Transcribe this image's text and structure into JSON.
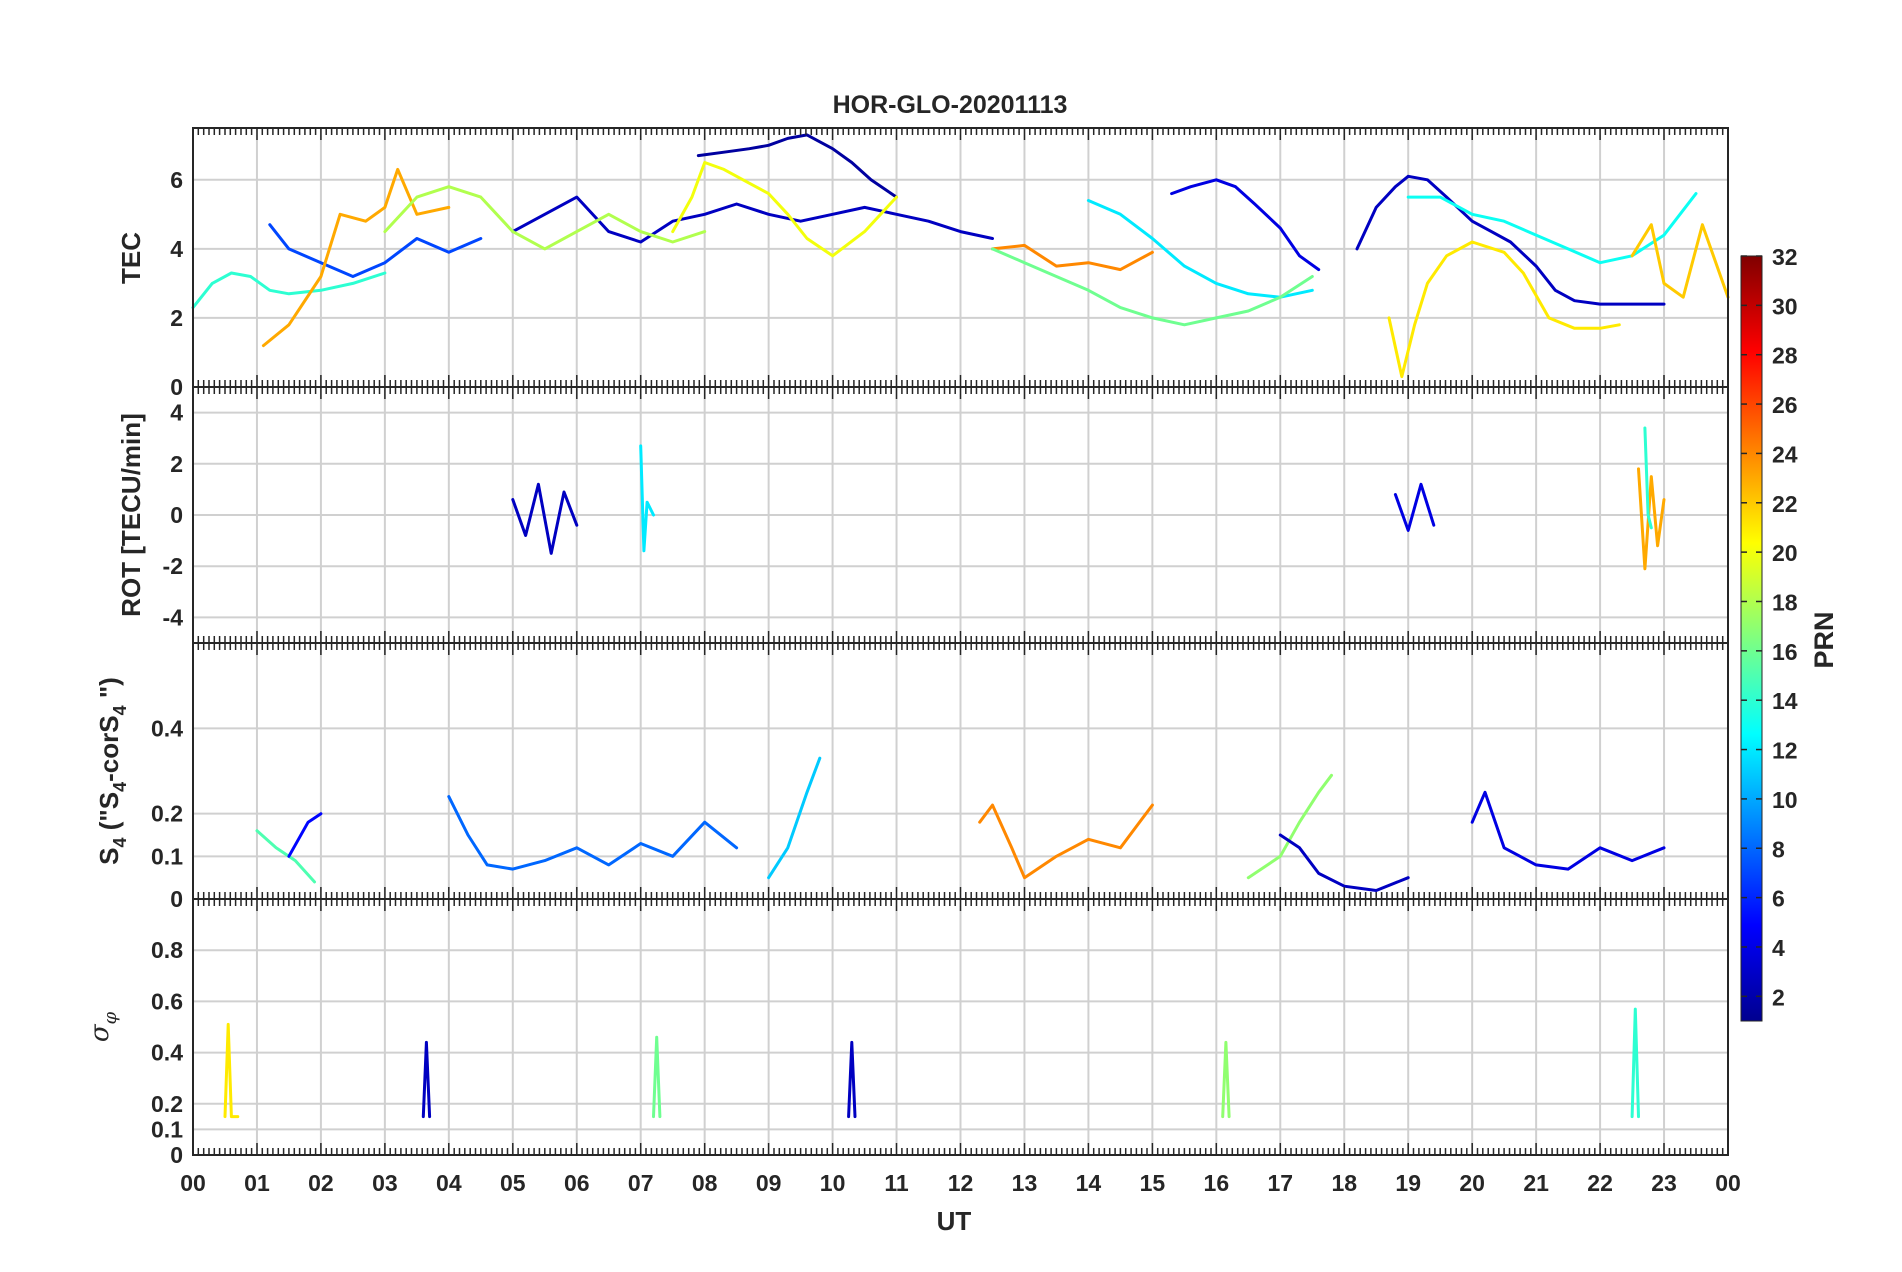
{
  "chart_data": {
    "type": "line",
    "title": "HOR-GLO-20201113",
    "xlabel": "UT",
    "x_tick_labels": [
      "00",
      "01",
      "02",
      "03",
      "04",
      "05",
      "06",
      "07",
      "08",
      "09",
      "10",
      "11",
      "12",
      "13",
      "14",
      "15",
      "16",
      "17",
      "18",
      "19",
      "20",
      "21",
      "22",
      "23",
      "00"
    ],
    "xlim": [
      0,
      24
    ],
    "colorbar": {
      "label": "PRN",
      "range": [
        1,
        32
      ],
      "tick_labels": [
        "2",
        "4",
        "6",
        "8",
        "10",
        "12",
        "14",
        "16",
        "18",
        "20",
        "22",
        "24",
        "26",
        "28",
        "30",
        "32"
      ],
      "colormap": "jet"
    },
    "panels": [
      {
        "ylabel": "TEC",
        "ylim": [
          0,
          7.5
        ],
        "y_tick_labels": [
          "0",
          "2",
          "4",
          "6"
        ],
        "series": [
          {
            "prn": 3,
            "x": [
              5.0,
              5.5,
              6.0,
              6.5,
              7.0,
              7.5,
              8.0,
              8.5,
              9.0,
              9.5,
              10.0,
              10.5,
              11.0,
              11.5,
              12.0,
              12.5
            ],
            "y": [
              4.5,
              5.0,
              5.5,
              4.5,
              4.2,
              4.8,
              5.0,
              5.3,
              5.0,
              4.8,
              5.0,
              5.2,
              5.0,
              4.8,
              4.5,
              4.3
            ]
          },
          {
            "prn": 2,
            "x": [
              7.9,
              8.3,
              8.7,
              9.0,
              9.3,
              9.6,
              10.0,
              10.3,
              10.6,
              11.0
            ],
            "y": [
              6.7,
              6.8,
              6.9,
              7.0,
              7.2,
              7.3,
              6.9,
              6.5,
              6.0,
              5.5
            ]
          },
          {
            "prn": 4,
            "x": [
              15.3,
              15.6,
              16.0,
              16.3,
              16.6,
              17.0,
              17.3,
              17.6
            ],
            "y": [
              5.6,
              5.8,
              6.0,
              5.8,
              5.3,
              4.6,
              3.8,
              3.4
            ]
          },
          {
            "prn": 3,
            "x": [
              18.2,
              18.5,
              18.8,
              19.0,
              19.3,
              19.6,
              20.0,
              20.3,
              20.6,
              21.0,
              21.3,
              21.6,
              22.0,
              22.3,
              22.6,
              23.0
            ],
            "y": [
              4.0,
              5.2,
              5.8,
              6.1,
              6.0,
              5.5,
              4.8,
              4.5,
              4.2,
              3.5,
              2.8,
              2.5,
              2.4,
              2.4,
              2.4,
              2.4
            ]
          },
          {
            "prn": 7,
            "x": [
              1.2,
              1.5,
              2.0,
              2.5,
              3.0,
              3.5,
              4.0,
              4.5
            ],
            "y": [
              4.7,
              4.0,
              3.6,
              3.2,
              3.6,
              4.3,
              3.9,
              4.3
            ]
          },
          {
            "prn": 12,
            "x": [
              14.0,
              14.5,
              15.0,
              15.5,
              16.0,
              16.5,
              17.0,
              17.5
            ],
            "y": [
              5.4,
              5.0,
              4.3,
              3.5,
              3.0,
              2.7,
              2.6,
              2.8
            ]
          },
          {
            "prn": 14,
            "x": [
              0.0,
              0.3,
              0.6,
              0.9,
              1.2,
              1.5,
              2.0,
              2.5,
              3.0
            ],
            "y": [
              2.3,
              3.0,
              3.3,
              3.2,
              2.8,
              2.7,
              2.8,
              3.0,
              3.3
            ]
          },
          {
            "prn": 13,
            "x": [
              19.0,
              19.5,
              20.0,
              20.5,
              21.0,
              21.5,
              22.0,
              22.5,
              23.0,
              23.5
            ],
            "y": [
              5.5,
              5.5,
              5.0,
              4.8,
              4.4,
              4.0,
              3.6,
              3.8,
              4.4,
              5.6
            ]
          },
          {
            "prn": 23,
            "x": [
              1.1,
              1.5,
              2.0,
              2.3,
              2.7,
              3.0,
              3.2,
              3.5,
              4.0
            ],
            "y": [
              1.2,
              1.8,
              3.2,
              5.0,
              4.8,
              5.2,
              6.3,
              5.0,
              5.2
            ]
          },
          {
            "prn": 18,
            "x": [
              3.0,
              3.5,
              4.0,
              4.5,
              5.0,
              5.5,
              6.0,
              6.5,
              7.0,
              7.5,
              8.0
            ],
            "y": [
              4.5,
              5.5,
              5.8,
              5.5,
              4.5,
              4.0,
              4.5,
              5.0,
              4.5,
              4.2,
              4.5
            ]
          },
          {
            "prn": 20,
            "x": [
              7.5,
              7.8,
              8.0,
              8.3,
              8.6,
              9.0,
              9.3,
              9.6,
              10.0,
              10.5,
              11.0
            ],
            "y": [
              4.5,
              5.5,
              6.5,
              6.3,
              6.0,
              5.6,
              5.0,
              4.3,
              3.8,
              4.5,
              5.5
            ]
          },
          {
            "prn": 21,
            "x": [
              18.7,
              18.9,
              19.1,
              19.3,
              19.6,
              20.0,
              20.5,
              20.8,
              21.2,
              21.6,
              22.0,
              22.3
            ],
            "y": [
              2.0,
              0.3,
              1.8,
              3.0,
              3.8,
              4.2,
              3.9,
              3.3,
              2.0,
              1.7,
              1.7,
              1.8
            ]
          },
          {
            "prn": 24,
            "x": [
              12.5,
              13.0,
              13.5,
              14.0,
              14.5,
              15.0
            ],
            "y": [
              4.0,
              4.1,
              3.5,
              3.6,
              3.4,
              3.9
            ]
          },
          {
            "prn": 22,
            "x": [
              22.5,
              22.8,
              23.0,
              23.3,
              23.6,
              24.0
            ],
            "y": [
              3.8,
              4.7,
              3.0,
              2.6,
              4.7,
              2.6
            ]
          },
          {
            "prn": 16,
            "x": [
              12.5,
              13.0,
              13.5,
              14.0,
              14.5,
              15.0,
              15.5,
              16.0,
              16.5,
              17.0,
              17.5
            ],
            "y": [
              4.0,
              3.6,
              3.2,
              2.8,
              2.3,
              2.0,
              1.8,
              2.0,
              2.2,
              2.6,
              3.2
            ]
          }
        ]
      },
      {
        "ylabel": "ROT [TECU/min]",
        "ylim": [
          -5,
          5
        ],
        "y_tick_labels": [
          "-4",
          "-2",
          "0",
          "2",
          "4"
        ],
        "series": [
          {
            "prn": 3,
            "x": [
              5.0,
              5.2,
              5.4,
              5.6,
              5.8,
              6.0
            ],
            "y": [
              0.6,
              -0.8,
              1.2,
              -1.5,
              0.9,
              -0.4
            ]
          },
          {
            "prn": 12,
            "x": [
              7.0,
              7.05,
              7.1,
              7.2
            ],
            "y": [
              2.7,
              -1.4,
              0.5,
              0.0
            ]
          },
          {
            "prn": 23,
            "x": [
              22.6,
              22.7,
              22.8,
              22.9,
              23.0
            ],
            "y": [
              1.8,
              -2.1,
              1.5,
              -1.2,
              0.6
            ]
          },
          {
            "prn": 14,
            "x": [
              22.7,
              22.75,
              22.8
            ],
            "y": [
              3.4,
              0.0,
              -0.5
            ]
          },
          {
            "prn": 4,
            "x": [
              18.8,
              19.0,
              19.2,
              19.4
            ],
            "y": [
              0.8,
              -0.6,
              1.2,
              -0.4
            ]
          }
        ]
      },
      {
        "ylabel": "S4 (\"S4-corS4\")",
        "ylim": [
          0,
          0.6
        ],
        "y_tick_labels": [
          "0",
          "0.1",
          "0.2",
          "0.4"
        ],
        "series": [
          {
            "prn": 11,
            "x": [
              9.0,
              9.3,
              9.6,
              9.8
            ],
            "y": [
              0.05,
              0.12,
              0.25,
              0.33
            ]
          },
          {
            "prn": 8,
            "x": [
              4.0,
              4.3,
              4.6,
              5.0,
              5.5,
              6.0,
              6.5,
              7.0,
              7.5,
              8.0,
              8.5
            ],
            "y": [
              0.24,
              0.15,
              0.08,
              0.07,
              0.09,
              0.12,
              0.08,
              0.13,
              0.1,
              0.18,
              0.12
            ]
          },
          {
            "prn": 4,
            "x": [
              20.0,
              20.2,
              20.5,
              21.0,
              21.5,
              22.0,
              22.5,
              23.0
            ],
            "y": [
              0.18,
              0.25,
              0.12,
              0.08,
              0.07,
              0.12,
              0.09,
              0.12
            ]
          },
          {
            "prn": 24,
            "x": [
              12.3,
              12.5,
              12.8,
              13.0,
              13.5,
              14.0,
              14.5,
              15.0
            ],
            "y": [
              0.18,
              0.22,
              0.12,
              0.05,
              0.1,
              0.14,
              0.12,
              0.22
            ]
          },
          {
            "prn": 17,
            "x": [
              16.5,
              17.0,
              17.3,
              17.6,
              17.8
            ],
            "y": [
              0.05,
              0.1,
              0.18,
              0.25,
              0.29
            ]
          },
          {
            "prn": 15,
            "x": [
              1.0,
              1.3,
              1.6,
              1.9
            ],
            "y": [
              0.16,
              0.12,
              0.09,
              0.04
            ]
          },
          {
            "prn": 5,
            "x": [
              1.5,
              1.8,
              2.0
            ],
            "y": [
              0.1,
              0.18,
              0.2
            ]
          },
          {
            "prn": 3,
            "x": [
              17.0,
              17.3,
              17.6,
              18.0,
              18.5,
              19.0
            ],
            "y": [
              0.15,
              0.12,
              0.06,
              0.03,
              0.02,
              0.05
            ]
          }
        ]
      },
      {
        "ylabel": "σφ",
        "ylim": [
          0,
          1
        ],
        "y_tick_labels": [
          "0",
          "0.1",
          "0.2",
          "0.4",
          "0.6",
          "0.8"
        ],
        "series": [
          {
            "prn": 21,
            "x": [
              0.5,
              0.55,
              0.6,
              0.7
            ],
            "y": [
              0.15,
              0.51,
              0.15,
              0.15
            ]
          },
          {
            "prn": 16,
            "x": [
              7.2,
              7.25,
              7.3
            ],
            "y": [
              0.15,
              0.46,
              0.15
            ]
          },
          {
            "prn": 14,
            "x": [
              22.5,
              22.55,
              22.6
            ],
            "y": [
              0.15,
              0.57,
              0.15
            ]
          },
          {
            "prn": 3,
            "x": [
              3.6,
              3.65,
              3.7
            ],
            "y": [
              0.15,
              0.44,
              0.15
            ]
          },
          {
            "prn": 3,
            "x": [
              10.25,
              10.3,
              10.35
            ],
            "y": [
              0.15,
              0.44,
              0.15
            ]
          },
          {
            "prn": 17,
            "x": [
              16.1,
              16.15,
              16.2
            ],
            "y": [
              0.15,
              0.44,
              0.15
            ]
          }
        ]
      }
    ]
  }
}
